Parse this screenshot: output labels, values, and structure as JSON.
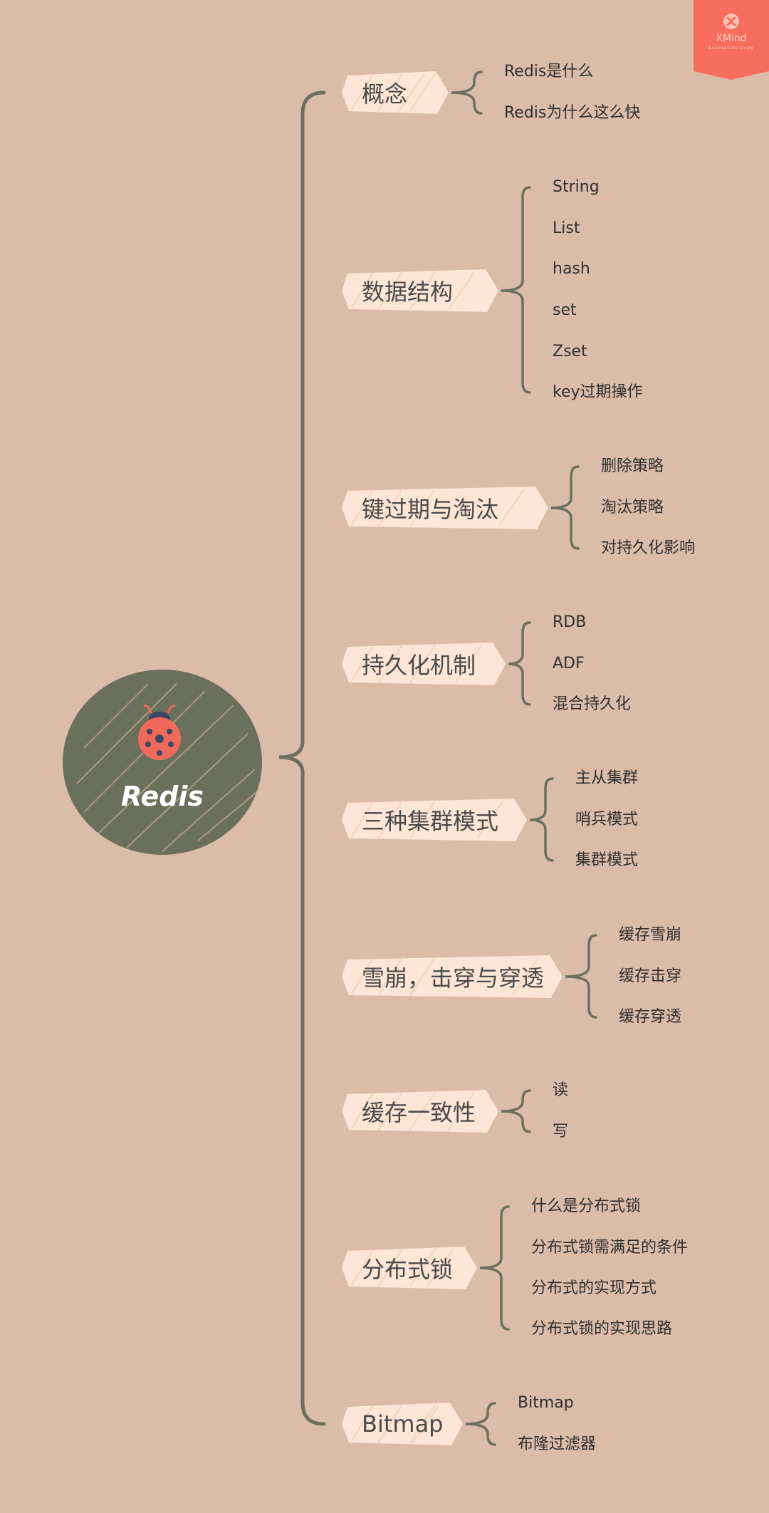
{
  "watermark": {
    "brand": "XMind",
    "sub": "Evaluation Copy"
  },
  "root": {
    "label": "Redis"
  },
  "branches": [
    {
      "label": "概念",
      "children": [
        "Redis是什么",
        "Redis为什么这么快"
      ]
    },
    {
      "label": "数据结构",
      "children": [
        "String",
        "List",
        "hash",
        "set",
        "Zset",
        "key过期操作"
      ]
    },
    {
      "label": "键过期与淘汰",
      "children": [
        "删除策略",
        "淘汰策略",
        "对持久化影响"
      ]
    },
    {
      "label": "持久化机制",
      "children": [
        "RDB",
        "ADF",
        "混合持久化"
      ]
    },
    {
      "label": "三种集群模式",
      "children": [
        "主从集群",
        "哨兵模式",
        "集群模式"
      ]
    },
    {
      "label": "雪崩，击穿与穿透",
      "children": [
        "缓存雪崩",
        "缓存击穿",
        "缓存穿透"
      ]
    },
    {
      "label": "缓存一致性",
      "children": [
        "读",
        "写"
      ]
    },
    {
      "label": "分布式锁",
      "children": [
        "什么是分布式锁",
        "分布式锁需满足的条件",
        "分布式的实现方式",
        "分布式锁的实现思路"
      ]
    },
    {
      "label": "Bitmap",
      "children": [
        "Bitmap",
        "布隆过滤器"
      ]
    }
  ],
  "colors": {
    "background": "#dbbca8",
    "line": "#6b705c",
    "node": "#fde6d6",
    "root": "#6b705c",
    "accent": "#f06a5c"
  }
}
